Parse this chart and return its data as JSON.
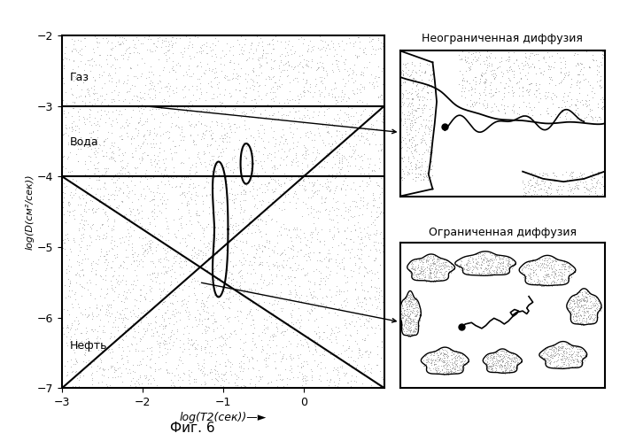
{
  "title": "Фиг. 6",
  "xlabel": "log(T2(сек))—►",
  "ylabel": "log(D(см²/сек))",
  "xlim": [
    -3,
    1
  ],
  "ylim": [
    -7,
    -2
  ],
  "xticks": [
    -3,
    -2,
    -1,
    0
  ],
  "yticks": [
    -7,
    -6,
    -5,
    -4,
    -3,
    -2
  ],
  "gas_label": "Газ",
  "water_label": "Вода",
  "oil_label": "Нефть",
  "gas_boundary": -3,
  "water_boundary": -4,
  "label1": "Неограниченная диффузия",
  "label2": "Ограниченная диффузия",
  "background_color": "#ffffff"
}
